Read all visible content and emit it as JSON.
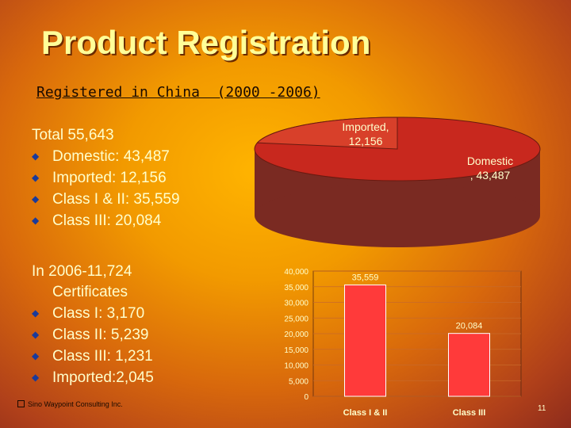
{
  "title": "Product Registration",
  "subtitle": "Registered in China  (2000 -2006)",
  "block1": {
    "heading": "Total 55,643",
    "items": [
      "Domestic: 43,487",
      "Imported: 12,156",
      "Class I & II: 35,559",
      "Class III: 20,084"
    ]
  },
  "block2": {
    "heading_line1": "In 2006-11,724",
    "heading_line2": "Certificates",
    "items": [
      "Class I: 3,170",
      "Class II: 5,239",
      "Class III: 1,231",
      "Imported:2,045"
    ]
  },
  "footer": "Sino Waypoint Consulting Inc.",
  "page_number": "11",
  "colors": {
    "bullet": "#1a3a9a",
    "pie_domestic": "#c8281e",
    "pie_imported": "#d8402a",
    "bar": "#ff3a3a"
  },
  "chart_data": [
    {
      "type": "pie",
      "slices": [
        {
          "label_line1": "Imported,",
          "label_line2": "12,156",
          "value": 12156
        },
        {
          "label_line1": "Domestic",
          "label_line2": ", 43,487",
          "value": 43487
        }
      ]
    },
    {
      "type": "bar",
      "categories": [
        "Class I & II",
        "Class III"
      ],
      "values": [
        35559,
        20084
      ],
      "value_labels": [
        "35,559",
        "20,084"
      ],
      "ylim": [
        0,
        40000
      ],
      "yticks": [
        "0",
        "5,000",
        "10,000",
        "15,000",
        "20,000",
        "25,000",
        "30,000",
        "35,000",
        "40,000"
      ],
      "grid": true
    }
  ]
}
